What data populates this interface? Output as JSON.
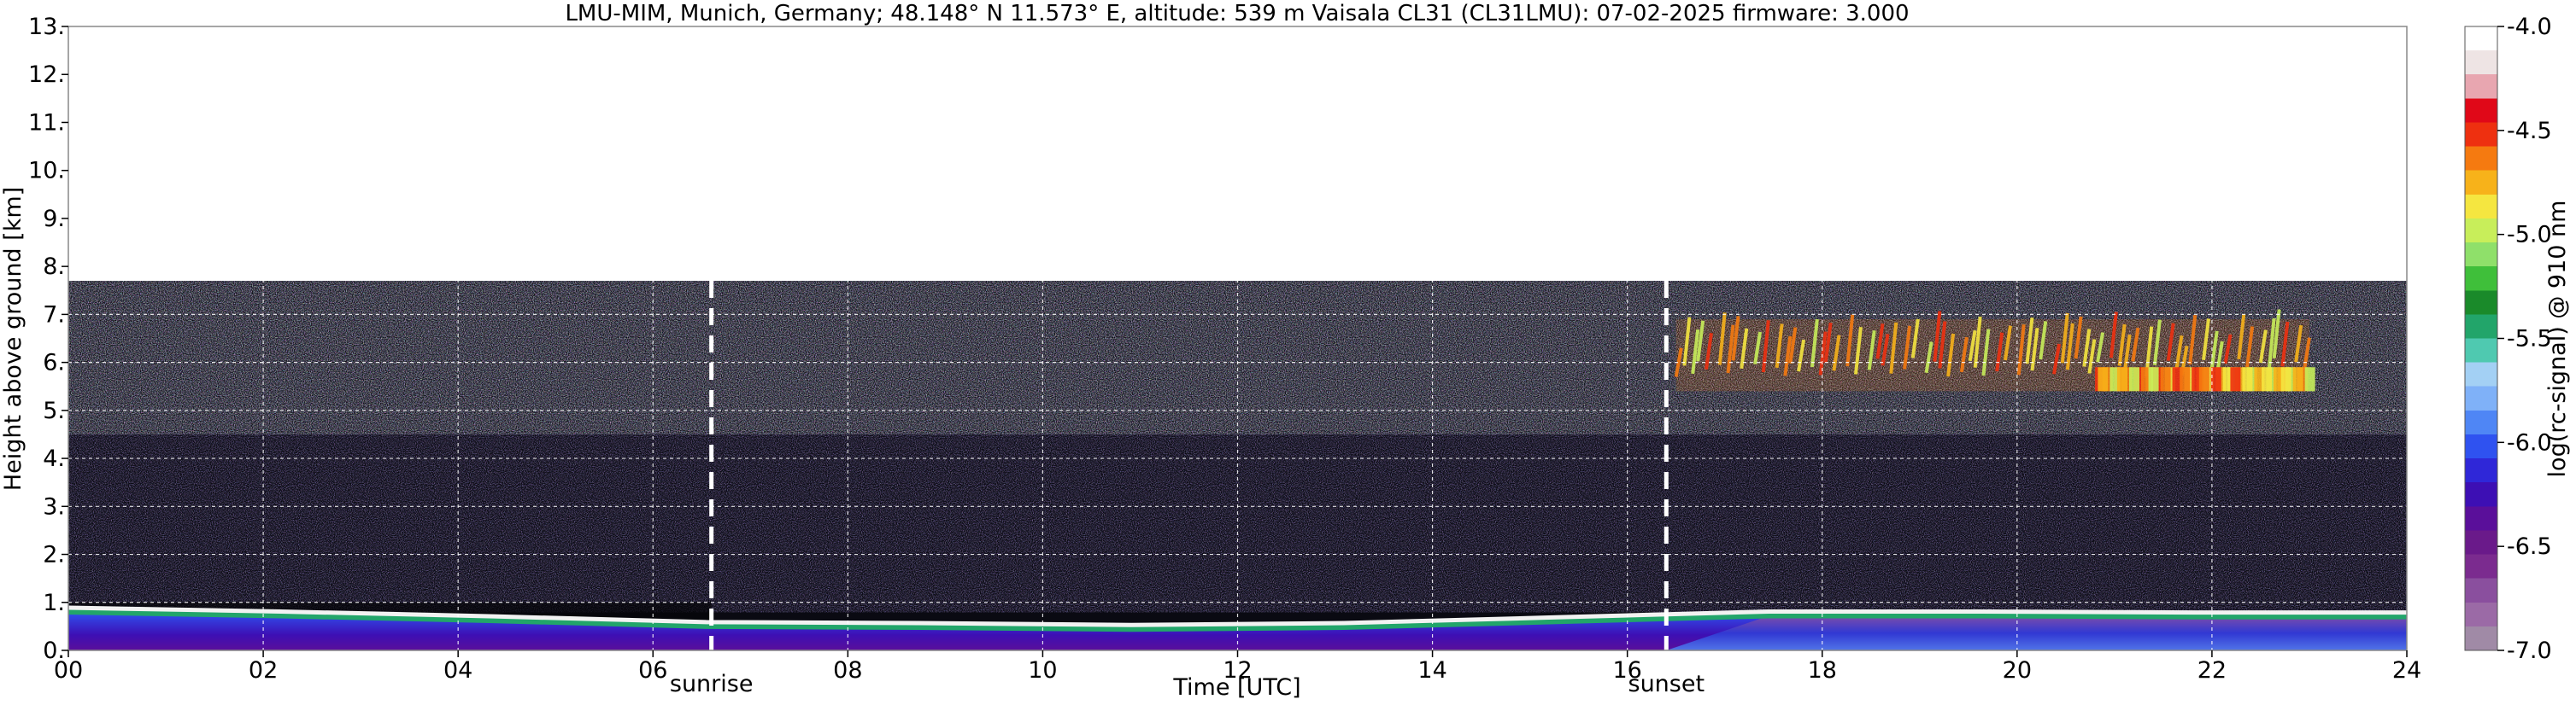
{
  "chart_data": {
    "type": "heatmap",
    "title": "LMU-MIM, Munich, Germany; 48.148° N 11.573° E, altitude: 539 m    Vaisala CL31 (CL31LMU): 07-02-2025    firmware: 3.000",
    "xlabel": "Time [UTC]",
    "ylabel": "Height above ground [km]",
    "xlim": [
      0,
      24
    ],
    "ylim": [
      0,
      13
    ],
    "x_ticks": [
      "00",
      "02",
      "04",
      "06",
      "08",
      "10",
      "12",
      "14",
      "16",
      "18",
      "20",
      "22",
      "24"
    ],
    "y_ticks": [
      "0.",
      "1.",
      "2.",
      "3.",
      "4.",
      "5.",
      "6.",
      "7.",
      "8.",
      "9.",
      "10.",
      "11.",
      "12.",
      "13."
    ],
    "grid": true,
    "data_top_km": 7.7,
    "events": [
      {
        "label": "sunrise",
        "time_h": 6.6
      },
      {
        "label": "sunset",
        "time_h": 16.4
      }
    ],
    "colorbar": {
      "label": "log(rc-signal) @ 910 nm",
      "range": [
        -7.0,
        -4.0
      ],
      "ticks": [
        "-4.0",
        "-4.5",
        "-5.0",
        "-5.5",
        "-6.0",
        "-6.5",
        "-7.0"
      ],
      "ticks_values": [
        -4.0,
        -4.5,
        -5.0,
        -5.5,
        -6.0,
        -6.5,
        -7.0
      ],
      "colors": [
        "#a08aa6",
        "#9b6aa6",
        "#8a4f9e",
        "#7b2b8f",
        "#6a1a8a",
        "#5a0f9a",
        "#3d0fb4",
        "#2f27d8",
        "#2f52f0",
        "#4f86f5",
        "#7fb1f8",
        "#a3d0f4",
        "#4fc9b0",
        "#22a56a",
        "#1a8a2a",
        "#3fbf3a",
        "#8fe06a",
        "#c8ee5a",
        "#f5e640",
        "#f7b21a",
        "#f57a10",
        "#ee3010",
        "#e00818",
        "#e8a6b0",
        "#eee4e4",
        "#ffffff"
      ]
    },
    "features": {
      "aerosol_layer_top_km": [
        0.8,
        0.72,
        0.62,
        0.5,
        0.48,
        0.44,
        0.48,
        0.6,
        0.72,
        0.72,
        0.7,
        0.7
      ],
      "cloud_layer_6km": {
        "start_h": 16.5,
        "end_h": 23.0,
        "base_km": 5.4,
        "top_km": 6.9
      }
    }
  }
}
